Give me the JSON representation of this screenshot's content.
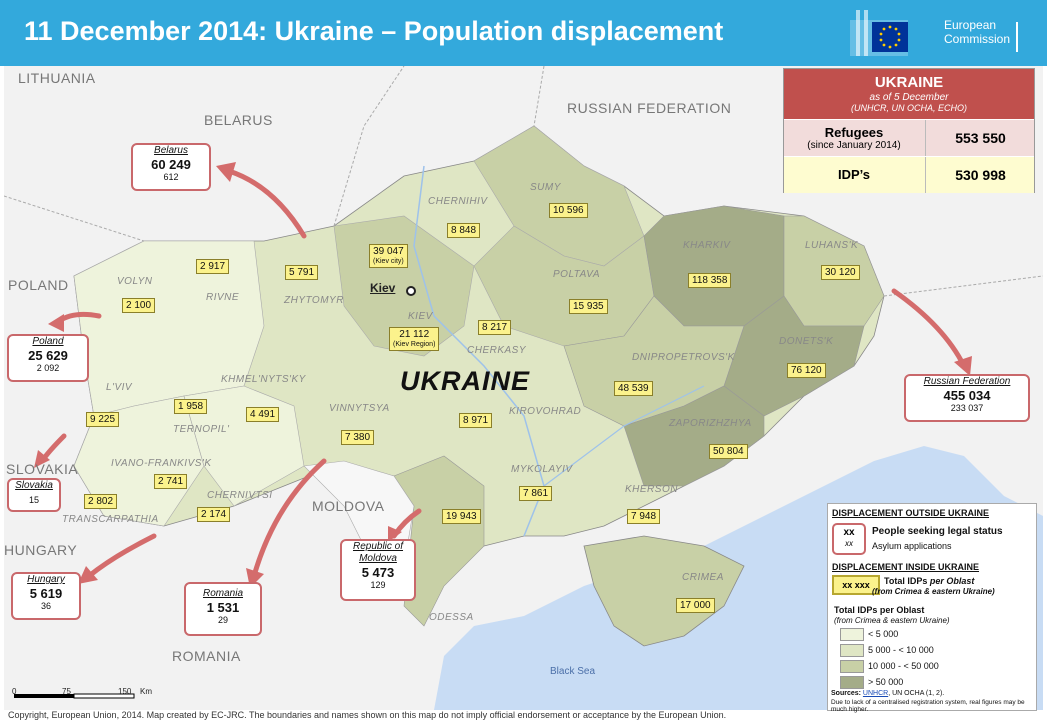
{
  "title": "11 December 2014: Ukraine – Population displacement",
  "logo": {
    "line1": "European",
    "line2": "Commission"
  },
  "summary": {
    "heading": "UKRAINE",
    "asof": "as of 5 December",
    "sources": "(UNHCR, UN OCHA, ECHO)",
    "refugees_label": "Refugees",
    "refugees_sub": "(since January 2014)",
    "refugees_value": "553 550",
    "idps_label": "IDP’s",
    "idps_value": "530 998"
  },
  "countries": {
    "lithuania": "LITHUANIA",
    "belarus": "BELARUS",
    "russia": "RUSSIAN FEDERATION",
    "poland": "POLAND",
    "slovakia": "SLOVAKIA",
    "hungary": "HUNGARY",
    "moldova": "MOLDOVA",
    "romania": "ROMANIA",
    "ukraine": "UKRAINE"
  },
  "sea": "Black Sea",
  "capital": "Kiev",
  "oblasts": {
    "volyn": "VOLYN",
    "rivne": "RIVNE",
    "zhytomyr": "ZHYTOMYR",
    "chernihiv": "CHERNIHIV",
    "sumy": "SUMY",
    "kharkiv": "KHARKIV",
    "luhansk": "LUHANS'K",
    "poltava": "POLTAVA",
    "kiev": "KIEV",
    "cherkasy": "CHERKASY",
    "dnipro": "DNIPROPETROVS'K",
    "donetsk": "DONETS'K",
    "lviv": "L'VIV",
    "khmelnytsky": "KHMEL'NYTS'KY",
    "ternopil": "TERNOPIL'",
    "vinnytsya": "VINNYTSYA",
    "kirovohrad": "KIROVOHRAD",
    "zaporizhzhya": "ZAPORIZHZHYA",
    "ivano": "IVANO-FRANKIVS'K",
    "chernivtsi": "CHERNIVTSI",
    "transcarpathia": "TRANSCARPATHIA",
    "mykolayiv": "MYKOLAYIV",
    "kherson": "KHERSON",
    "crimea": "CRIMEA",
    "odessa": "ODESSA"
  },
  "idps": {
    "volyn": "2 100",
    "rivne": "2 917",
    "zhytomyr": "5 791",
    "kiev_city": "39 047",
    "kiev_city_sub": "(Kiev city)",
    "kiev_region": "21 112",
    "kiev_region_sub": "(Kiev Region)",
    "chernihiv": "8 848",
    "sumy": "10 596",
    "kharkiv": "118 358",
    "luhansk": "30 120",
    "poltava": "15 935",
    "cherkasy": "8 217",
    "dnipro": "48 539",
    "donetsk": "76 120",
    "lviv": "9 225",
    "khmelnytsky": "4 491",
    "ternopil": "1 958",
    "vinnytsya": "7 380",
    "kirovohrad": "8 971",
    "zaporizhzhya": "50 804",
    "ivano": "2 741",
    "transcarpathia": "2 802",
    "chernivtsi": "2 174",
    "mykolayiv": "7 861",
    "odessa": "19 943",
    "kherson": "7 948",
    "crimea": "17 000"
  },
  "refugees": {
    "belarus": {
      "name": "Belarus",
      "num": "60 249",
      "sub": "612"
    },
    "poland": {
      "name": "Poland",
      "num": "25 629",
      "sub": "2 092"
    },
    "slovakia": {
      "name": "Slovakia",
      "sub": "15"
    },
    "hungary": {
      "name": "Hungary",
      "num": "5 619",
      "sub": "36"
    },
    "romania": {
      "name": "Romania",
      "num": "1 531",
      "sub": "29"
    },
    "moldova": {
      "name1": "Republic of",
      "name2": "Moldova",
      "num": "5 473",
      "sub": "129"
    },
    "russia": {
      "name": "Russian Federation",
      "num": "455 034",
      "sub": "233 037"
    }
  },
  "legend": {
    "h1": "DISPLACEMENT OUTSIDE UKRAINE",
    "xx": "xx",
    "xx_small": "xx",
    "legal": "People seeking legal status",
    "asylum": "Asylum applications",
    "h2": "DISPLACEMENT INSIDE UKRAINE",
    "xxx": "xx xxx",
    "total": "Total IDPs",
    "per_oblast": " per Oblast",
    "from": "(from Crimea & eastern Ukraine)",
    "h3": "Total IDPs per Oblast",
    "h3sub": "(from Crimea & eastern Ukraine)",
    "c1": "< 5 000",
    "c2": "5 000 - < 10 000",
    "c3": "10 000 - < 50 000",
    "c4": "> 50 000",
    "colors": [
      "#eef3dc",
      "#dfe6c4",
      "#c8d0a6",
      "#a4ac88"
    ],
    "sources_label": "Sources:",
    "sources_links": "UNHCR",
    "sources_rest": ", UN OCHA (1, 2).",
    "note": "Due to lack of a centralised registration system, real figures may be much higher."
  },
  "scale": {
    "s0": "0",
    "s1": "75",
    "s2": "150",
    "unit": "Km"
  },
  "copyright": "Copyright, European Union, 2014. Map created by EC-JRC. The boundaries and names shown on this map do not imply official endorsement or acceptance by the European Union."
}
